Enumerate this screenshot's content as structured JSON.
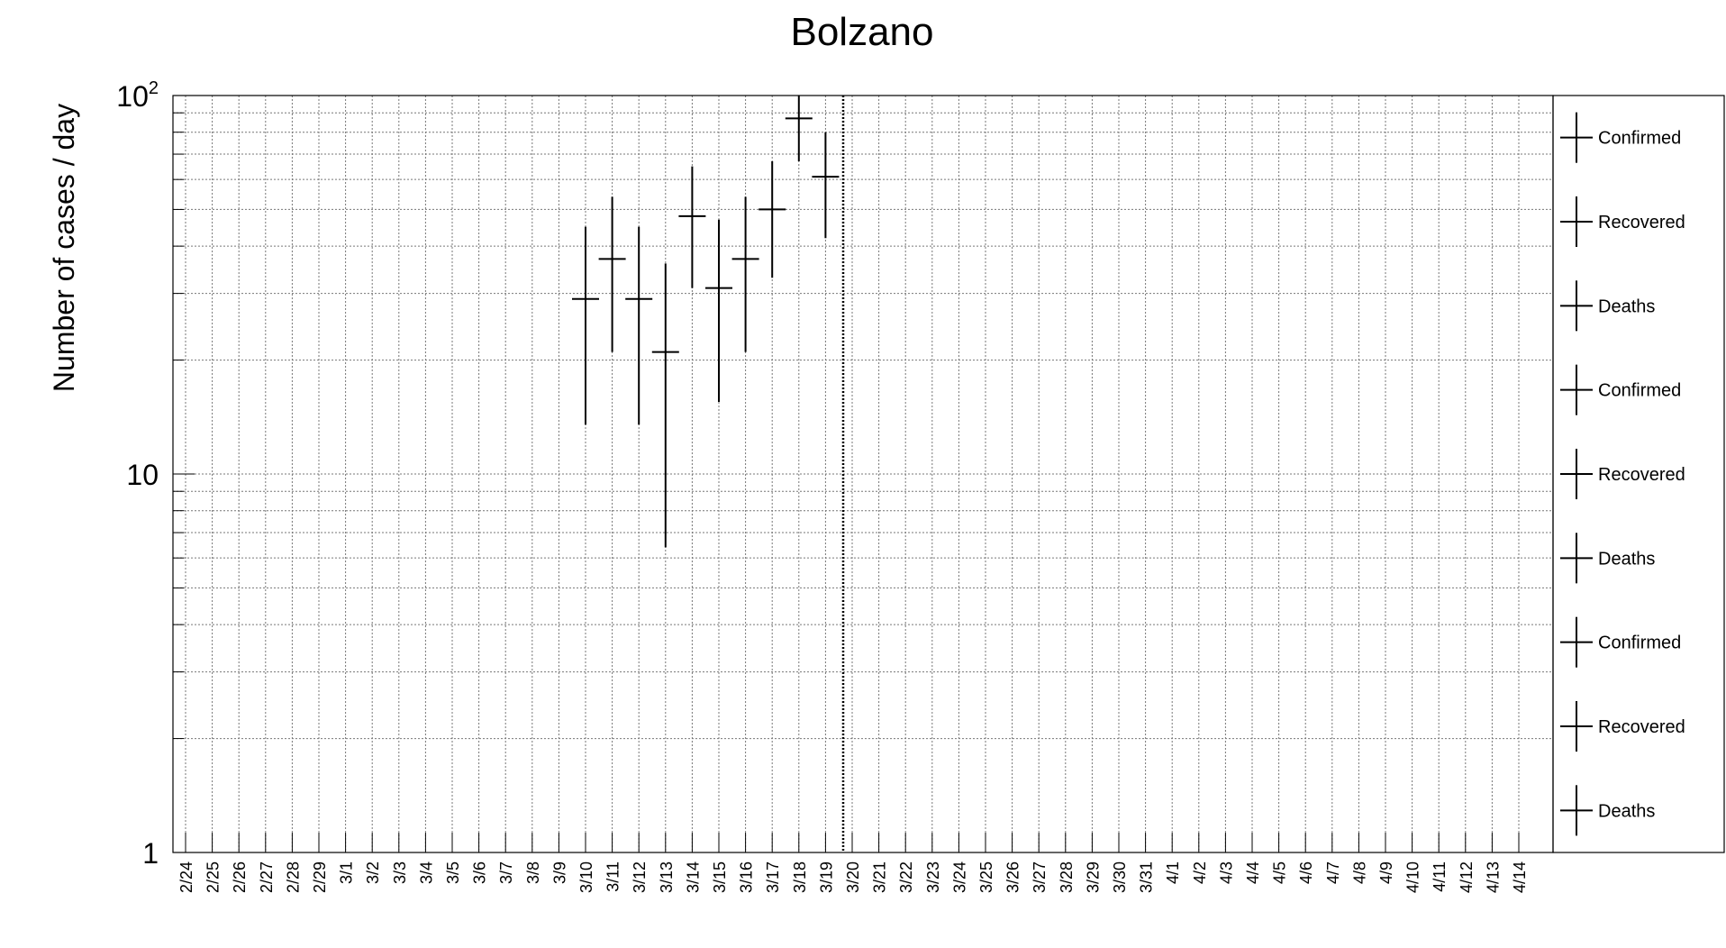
{
  "chart_data": {
    "type": "scatter",
    "title": "Bolzano",
    "xlabel": "",
    "ylabel": "Number of cases / day",
    "ylim": [
      1,
      100
    ],
    "yscale": "log",
    "grid": true,
    "y_ticks": [
      {
        "value": 1,
        "label": "1"
      },
      {
        "value": 10,
        "label": "10"
      },
      {
        "value": 100,
        "base": "10",
        "exp": "2"
      }
    ],
    "categories": [
      "2/24",
      "2/25",
      "2/26",
      "2/27",
      "2/28",
      "2/29",
      "3/1",
      "3/2",
      "3/3",
      "3/4",
      "3/5",
      "3/6",
      "3/7",
      "3/8",
      "3/9",
      "3/10",
      "3/11",
      "3/12",
      "3/13",
      "3/14",
      "3/15",
      "3/16",
      "3/17",
      "3/18",
      "3/19",
      "3/20",
      "3/21",
      "3/22",
      "3/23",
      "3/24",
      "3/25",
      "3/26",
      "3/27",
      "3/28",
      "3/29",
      "3/30",
      "3/31",
      "4/1",
      "4/2",
      "4/3",
      "4/4",
      "4/5",
      "4/6",
      "4/7",
      "4/8",
      "4/9",
      "4/10",
      "4/11",
      "4/12",
      "4/13",
      "4/14"
    ],
    "series": [
      {
        "name": "Confirmed",
        "color": "#000000",
        "points": [
          {
            "x": "3/10",
            "y": 29,
            "low": 13.5,
            "high": 45
          },
          {
            "x": "3/11",
            "y": 37,
            "low": 21,
            "high": 54
          },
          {
            "x": "3/12",
            "y": 29,
            "low": 13.5,
            "high": 45
          },
          {
            "x": "3/13",
            "y": 21,
            "low": 6.4,
            "high": 36
          },
          {
            "x": "3/14",
            "y": 48,
            "low": 31,
            "high": 65
          },
          {
            "x": "3/15",
            "y": 31,
            "low": 15.5,
            "high": 47
          },
          {
            "x": "3/16",
            "y": 37,
            "low": 21,
            "high": 54
          },
          {
            "x": "3/17",
            "y": 50,
            "low": 33,
            "high": 67
          },
          {
            "x": "3/18",
            "y": 87,
            "low": 67,
            "high": 100
          },
          {
            "x": "3/19",
            "y": 61,
            "low": 42,
            "high": 80
          }
        ]
      }
    ],
    "marker_line": {
      "x": "3/20",
      "style": "dotted"
    },
    "legend": {
      "placement": "right",
      "entries": [
        "Confirmed",
        "Recovered",
        "Deaths",
        "Confirmed",
        "Recovered",
        "Deaths",
        "Confirmed",
        "Recovered",
        "Deaths"
      ]
    }
  }
}
